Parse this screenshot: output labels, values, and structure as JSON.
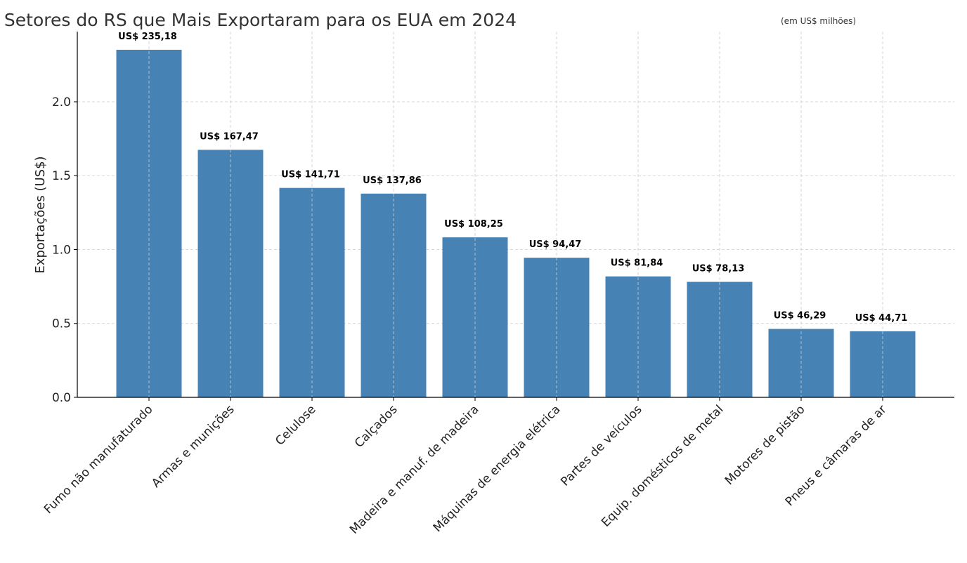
{
  "chart_data": {
    "type": "bar",
    "title": "Setores do RS que Mais Exportaram para os EUA em 2024",
    "subtitle": "(em US$ milhões)",
    "xlabel": "",
    "ylabel": "Exportações (US$)",
    "ylim": [
      0,
      2.475
    ],
    "yticks": [
      "0.0",
      "0.5",
      "1.0",
      "1.5",
      "2.0"
    ],
    "grid": true,
    "bar_color": "#4682b4",
    "categories": [
      "Fumo não manufaturado",
      "Armas e munições",
      "Celulose",
      "Calçados",
      "Madeira e manuf. de madeira",
      "Máquinas de energia elétrica",
      "Partes de veículos",
      "Equip. domésticos de metal",
      "Motores de pistão",
      "Pneus e câmaras de ar"
    ],
    "values": [
      2.3518,
      1.6747,
      1.4171,
      1.3786,
      1.0825,
      0.9447,
      0.8184,
      0.7813,
      0.4629,
      0.4471
    ],
    "data_labels": [
      "US$ 235,18",
      "US$ 167,47",
      "US$ 141,71",
      "US$ 137,86",
      "US$ 108,25",
      "US$ 94,47",
      "US$ 81,84",
      "US$ 78,13",
      "US$ 46,29",
      "US$ 44,71"
    ]
  }
}
